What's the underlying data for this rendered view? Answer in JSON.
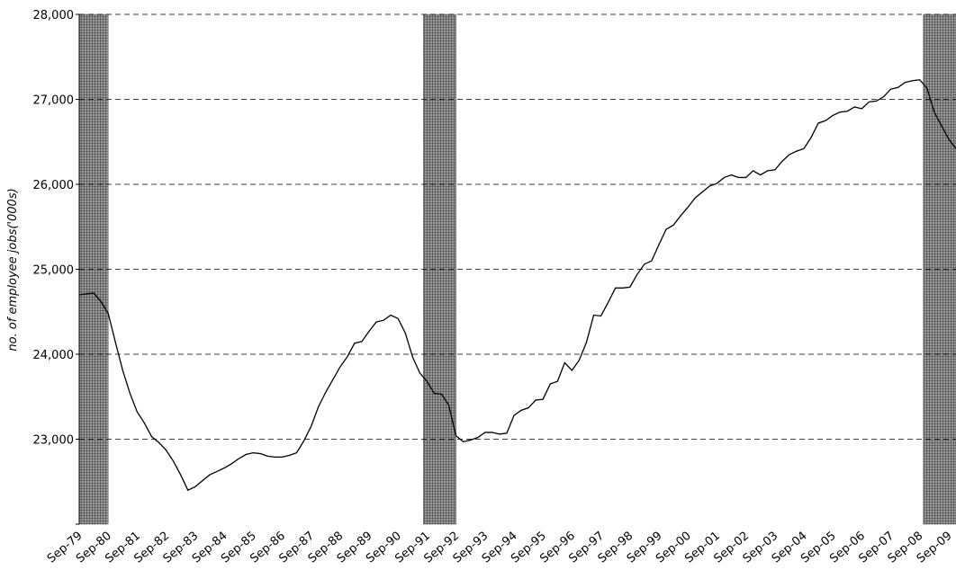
{
  "chart_data": {
    "type": "line",
    "y_axis_label": "no. of employee jobs('000s)",
    "categories": [
      "Sep-79",
      null,
      null,
      null,
      "Sep-80",
      null,
      null,
      null,
      "Sep-81",
      null,
      null,
      null,
      "Sep-82",
      null,
      null,
      null,
      "Sep-83",
      null,
      null,
      null,
      "Sep-84",
      null,
      null,
      null,
      "Sep-85",
      null,
      null,
      null,
      "Sep-86",
      null,
      null,
      null,
      "Sep-87",
      null,
      null,
      null,
      "Sep-88",
      null,
      null,
      null,
      "Sep-89",
      null,
      null,
      null,
      "Sep-90",
      null,
      null,
      null,
      "Sep-91",
      null,
      null,
      null,
      "Sep-92",
      null,
      null,
      null,
      "Sep-93",
      null,
      null,
      null,
      "Sep-94",
      null,
      null,
      null,
      "Sep-95",
      null,
      null,
      null,
      "Sep-96",
      null,
      null,
      null,
      "Sep-97",
      null,
      null,
      null,
      "Sep-98",
      null,
      null,
      null,
      "Sep-99",
      null,
      null,
      null,
      "Sep-00",
      null,
      null,
      null,
      "Sep-01",
      null,
      null,
      null,
      "Sep-02",
      null,
      null,
      null,
      "Sep-03",
      null,
      null,
      null,
      "Sep-04",
      null,
      null,
      null,
      "Sep-05",
      null,
      null,
      null,
      "Sep-06",
      null,
      null,
      null,
      "Sep-07",
      null,
      null,
      null,
      "Sep-08",
      null,
      null,
      null,
      "Sep-09",
      null
    ],
    "values": [
      24700,
      24710,
      24720,
      24620,
      24480,
      24140,
      23810,
      23540,
      23320,
      23190,
      23030,
      22960,
      22870,
      22740,
      22580,
      22400,
      22440,
      22510,
      22580,
      22620,
      22660,
      22710,
      22770,
      22820,
      22840,
      22830,
      22800,
      22790,
      22790,
      22810,
      22840,
      22980,
      23150,
      23380,
      23550,
      23700,
      23850,
      23970,
      24130,
      24150,
      24270,
      24380,
      24400,
      24460,
      24420,
      24250,
      23970,
      23780,
      23680,
      23540,
      23530,
      23400,
      23040,
      22970,
      22990,
      23020,
      23080,
      23080,
      23060,
      23070,
      23280,
      23340,
      23370,
      23460,
      23470,
      23650,
      23680,
      23900,
      23810,
      23930,
      24140,
      24460,
      24450,
      24610,
      24780,
      24780,
      24790,
      24940,
      25060,
      25100,
      25290,
      25470,
      25520,
      25630,
      25730,
      25840,
      25910,
      25980,
      26010,
      26080,
      26110,
      26080,
      26080,
      26160,
      26110,
      26160,
      26170,
      26270,
      26350,
      26390,
      26420,
      26550,
      26720,
      26750,
      26810,
      26850,
      26860,
      26910,
      26890,
      26970,
      26980,
      27030,
      27120,
      27140,
      27200,
      27220,
      27230,
      27130,
      26850,
      26690,
      26530,
      26420
    ],
    "color": "#000000",
    "ylim": [
      22000,
      28000
    ],
    "yticks": [
      {
        "value": 23000,
        "label": "23,000"
      },
      {
        "value": 24000,
        "label": "24,000"
      },
      {
        "value": 25000,
        "label": "25,000"
      },
      {
        "value": 26000,
        "label": "26,000"
      },
      {
        "value": 27000,
        "label": "27,000"
      },
      {
        "value": 28000,
        "label": "28,000"
      }
    ],
    "grid": true,
    "shaded_periods": [
      {
        "start": 0,
        "end": 4
      },
      {
        "start": 47.5,
        "end": 52
      },
      {
        "start": 116.5,
        "end": 121
      }
    ]
  }
}
